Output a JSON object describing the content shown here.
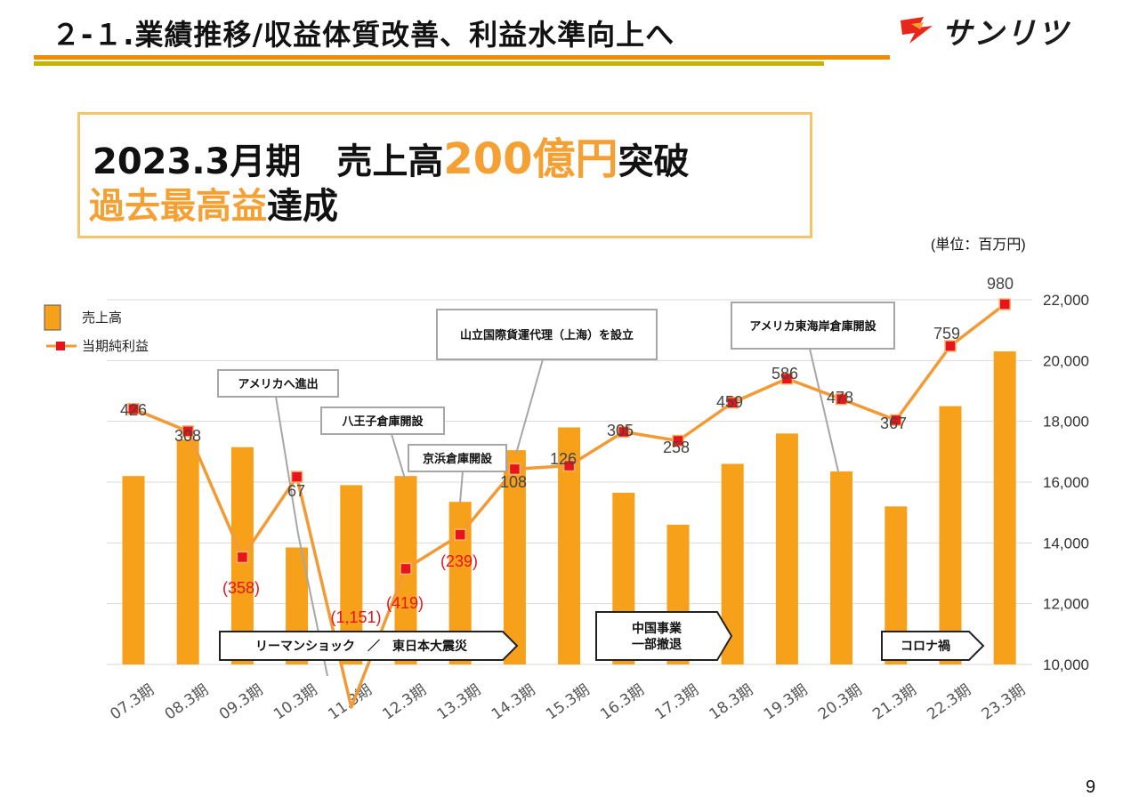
{
  "header": {
    "title": "２-１.業績推移/収益体質改善、利益水準向上へ",
    "logo_text": "サンリツ"
  },
  "headline": {
    "line1_prefix": "2023.3月期　売上高",
    "line1_highlight": "200億円",
    "line1_suffix": "突破",
    "line2_highlight": "過去最高益",
    "line2_suffix": "達成"
  },
  "unit_label": "(単位：百万円)",
  "page_number": "9",
  "colors": {
    "bar": "#f7a11a",
    "line": "#f29a36",
    "marker": "#e8141b",
    "negative_label": "#e8141b",
    "rule_top": "#f08c00",
    "rule_bottom": "#c7b200"
  },
  "chart_data": {
    "type": "bar+line",
    "categories": [
      "07.3期",
      "08.3期",
      "09.3期",
      "10.3期",
      "11.3期",
      "12.3期",
      "13.3期",
      "14.3期",
      "15.3期",
      "16.3期",
      "17.3期",
      "18.3期",
      "19.3期",
      "20.3期",
      "21.3期",
      "22.3期",
      "23.3期"
    ],
    "series": [
      {
        "name": "売上高",
        "type": "bar",
        "axis": "right",
        "values": [
          16200,
          17400,
          17150,
          13850,
          15900,
          16200,
          15350,
          17050,
          17800,
          15650,
          14600,
          16600,
          17600,
          16350,
          15200,
          18500,
          20300
        ]
      },
      {
        "name": "当期純利益",
        "type": "line",
        "values": [
          426,
          308,
          -358,
          67,
          -1151,
          -419,
          -239,
          108,
          126,
          305,
          258,
          459,
          586,
          478,
          367,
          759,
          980
        ],
        "labels": [
          "426",
          "308",
          "(358)",
          "67",
          "(1,151)",
          "(419)",
          "(239)",
          "108",
          "126",
          "305",
          "258",
          "459",
          "586",
          "478",
          "367",
          "759",
          "980"
        ]
      }
    ],
    "y_right": {
      "min": 10000,
      "max": 22000,
      "ticks": [
        "10,000",
        "12,000",
        "14,000",
        "16,000",
        "18,000",
        "20,000",
        "22,000"
      ]
    },
    "legend": [
      "売上高",
      "当期純利益"
    ],
    "annotations": [
      "アメリカへ進出",
      "八王子倉庫開設",
      "京浜倉庫開設",
      "山立国際貨運代理（上海）を設立",
      "アメリカ東海岸倉庫開設"
    ],
    "banners": [
      "リーマンショック　／　東日本大震災",
      "中国事業\n一部撤退",
      "コロナ禍"
    ]
  }
}
